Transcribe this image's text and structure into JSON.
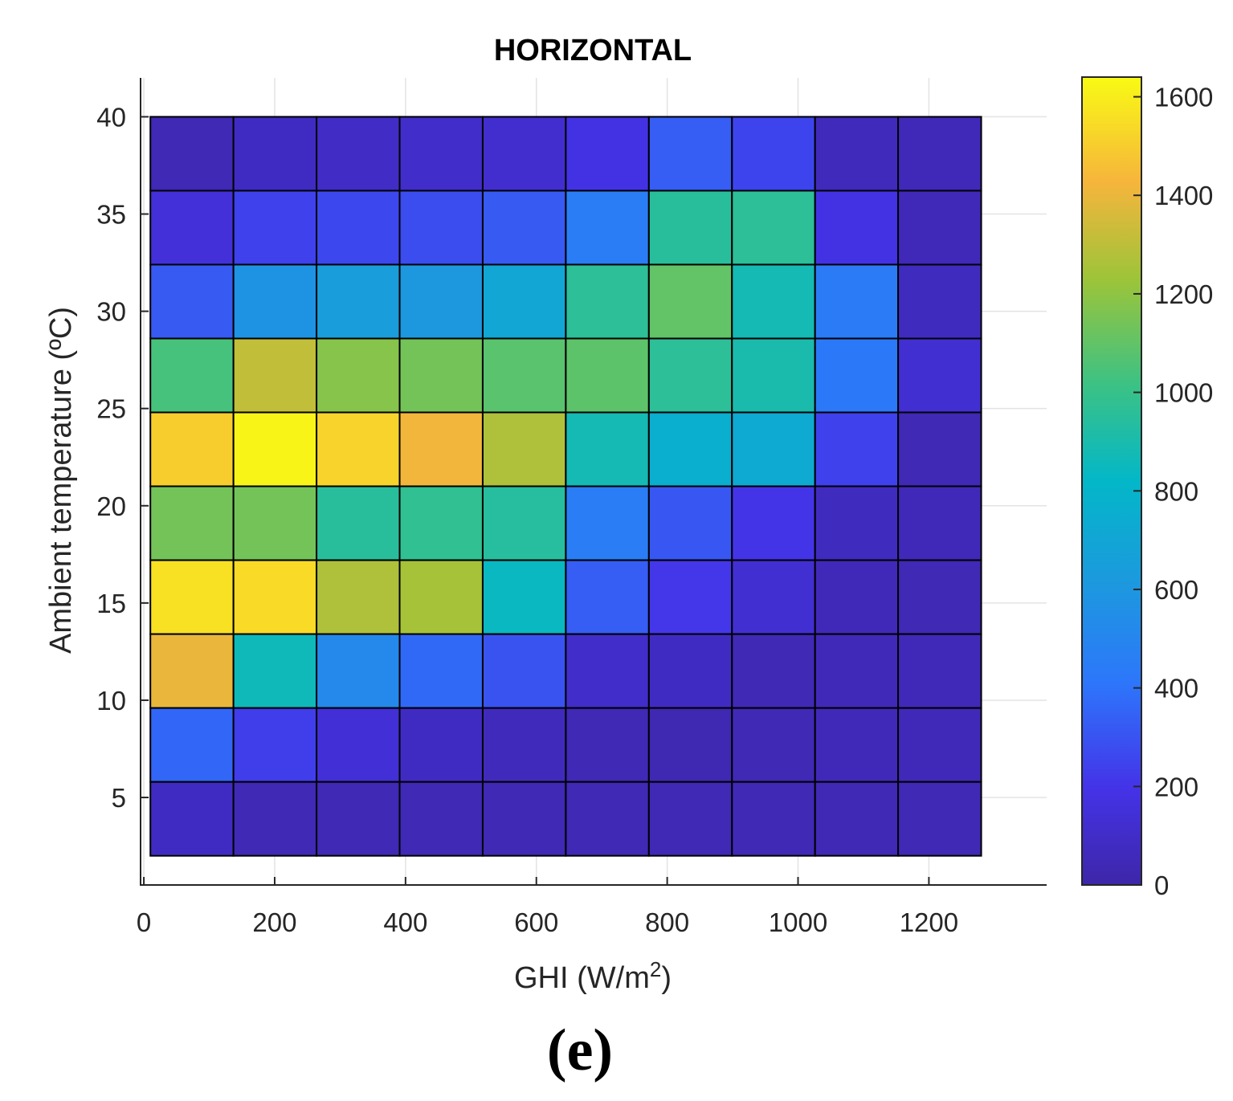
{
  "chart_data": {
    "type": "heatmap",
    "title": "HORIZONTAL",
    "xlabel": "GHI (W/m",
    "xlabel_superscript": "2",
    "xlabel_suffix": ")",
    "ylabel": "Ambient temperature (ºC)",
    "panel_label": "(e)",
    "xlim": [
      -5,
      1380
    ],
    "ylim": [
      0.5,
      42
    ],
    "x_ticks": [
      0,
      200,
      400,
      600,
      800,
      1000,
      1200
    ],
    "y_ticks": [
      5,
      10,
      15,
      20,
      25,
      30,
      35,
      40
    ],
    "x_bin_edges": [
      10,
      137,
      264,
      391,
      518,
      645,
      772,
      899,
      1026,
      1153,
      1280
    ],
    "y_bin_edges": [
      40,
      36.2,
      32.4,
      28.6,
      24.8,
      21,
      17.2,
      13.4,
      9.6,
      5.8,
      2
    ],
    "values": [
      [
        40,
        80,
        90,
        100,
        120,
        180,
        330,
        250,
        60,
        50
      ],
      [
        150,
        240,
        260,
        280,
        320,
        450,
        950,
        960,
        180,
        50
      ],
      [
        320,
        580,
        640,
        610,
        700,
        960,
        1100,
        880,
        440,
        70
      ],
      [
        1040,
        1310,
        1180,
        1140,
        1080,
        1090,
        960,
        900,
        430,
        130
      ],
      [
        1500,
        1620,
        1520,
        1420,
        1270,
        880,
        760,
        730,
        240,
        40
      ],
      [
        1140,
        1140,
        950,
        980,
        940,
        450,
        310,
        200,
        70,
        50
      ],
      [
        1560,
        1540,
        1270,
        1250,
        840,
        330,
        210,
        130,
        50,
        40
      ],
      [
        1400,
        860,
        520,
        370,
        300,
        100,
        80,
        40,
        50,
        50
      ],
      [
        360,
        230,
        140,
        80,
        60,
        40,
        30,
        40,
        50,
        50
      ],
      [
        80,
        40,
        40,
        40,
        40,
        40,
        40,
        40,
        40,
        40
      ]
    ],
    "colorbar": {
      "min": 0,
      "max": 1640,
      "ticks": [
        0,
        200,
        400,
        600,
        800,
        1000,
        1200,
        1400,
        1600
      ],
      "colormap": "parula"
    }
  }
}
